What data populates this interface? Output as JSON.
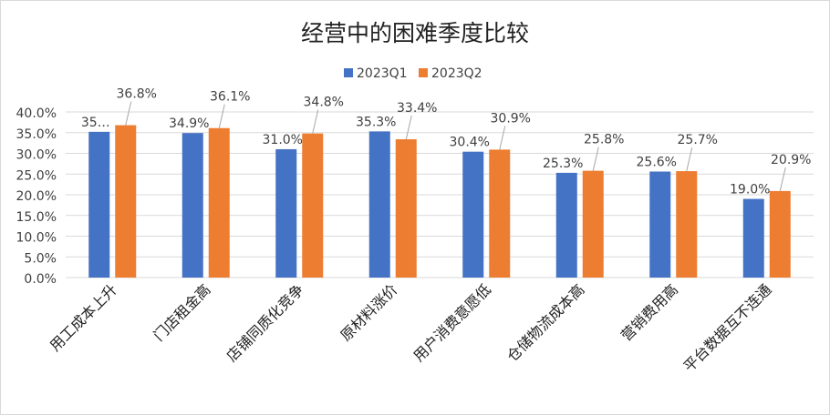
{
  "chart_data": {
    "type": "bar",
    "title": "经营中的困难季度比较",
    "categories": [
      "用工成本上升",
      "门店租金高",
      "店铺同质化竞争",
      "原材料涨价",
      "用户消费意愿低",
      "仓储物流成本高",
      "营销费用高",
      "平台数据互不连通"
    ],
    "series": [
      {
        "name": "2023Q1",
        "color": "#4472C4",
        "values": [
          35.2,
          34.9,
          31.0,
          35.3,
          30.4,
          25.3,
          25.6,
          19.0
        ],
        "labels": [
          "35…",
          "34.9%",
          "31.0%",
          "35.3%",
          "30.4%",
          "25.3%",
          "25.6%",
          "19.0%"
        ]
      },
      {
        "name": "2023Q2",
        "color": "#ED7D31",
        "values": [
          36.8,
          36.1,
          34.8,
          33.4,
          30.9,
          25.8,
          25.7,
          20.9
        ],
        "labels": [
          "36.8%",
          "36.1%",
          "34.8%",
          "33.4%",
          "30.9%",
          "25.8%",
          "25.7%",
          "20.9%"
        ]
      }
    ],
    "yticks": [
      "0.0%",
      "5.0%",
      "10.0%",
      "15.0%",
      "20.0%",
      "25.0%",
      "30.0%",
      "35.0%",
      "40.0%"
    ],
    "ylim": [
      0,
      40
    ],
    "grid": true,
    "legend": "top"
  }
}
